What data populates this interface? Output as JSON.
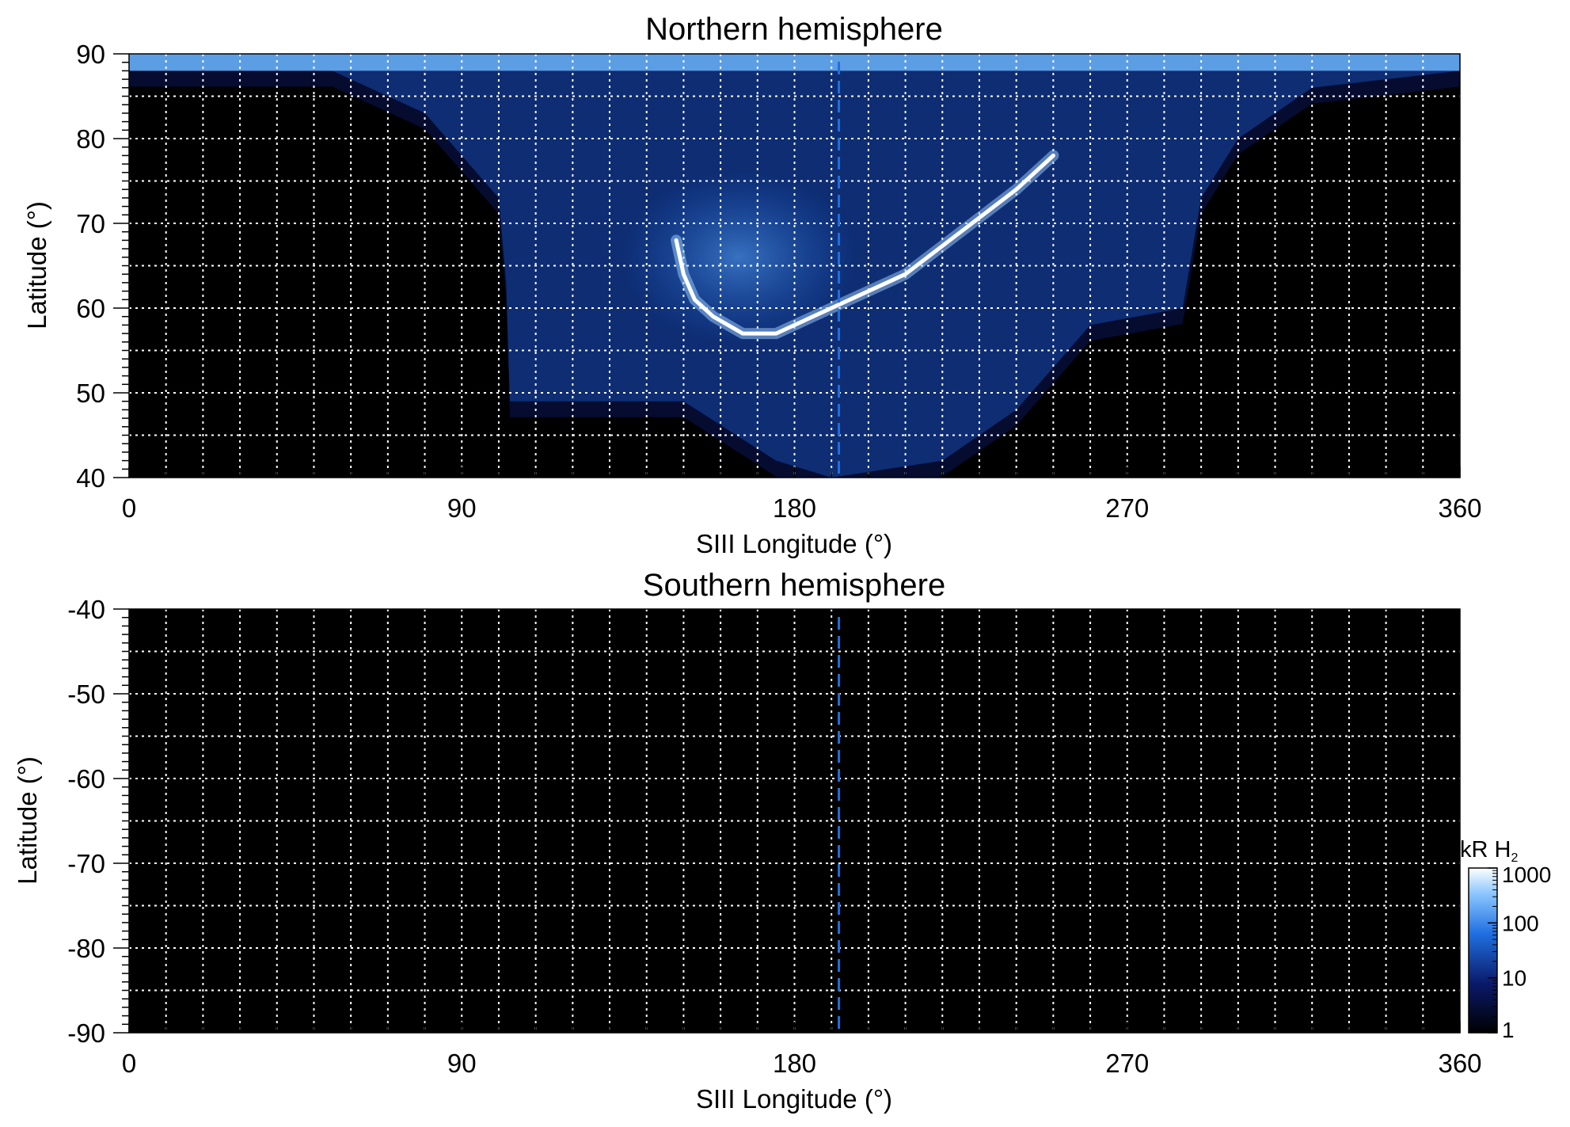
{
  "colors": {
    "background": "#000000",
    "auroral_low": "#0a1a6a",
    "auroral_mid": "#1f6fe0",
    "auroral_high": "#ffffff",
    "grid": "#ffffff",
    "reference_line": "#1f6fe0"
  },
  "chart_data": [
    {
      "type": "heatmap",
      "title": "Northern hemisphere",
      "xlabel": "SIII Longitude (°)",
      "ylabel": "Latitude (°)",
      "xlim": [
        0,
        360
      ],
      "ylim": [
        40,
        90
      ],
      "xticks": [
        0,
        90,
        180,
        270,
        360
      ],
      "yticks": [
        40,
        50,
        60,
        70,
        80,
        90
      ],
      "grid": true,
      "reference_line_longitude": 192,
      "features": [
        {
          "name": "main auroral oval",
          "points": [
            [
              148,
              68
            ],
            [
              150,
              64
            ],
            [
              153,
              61
            ],
            [
              158,
              59
            ],
            [
              166,
              57
            ],
            [
              175,
              57
            ],
            [
              185,
              59
            ],
            [
              195,
              61
            ],
            [
              210,
              64
            ],
            [
              225,
              69
            ],
            [
              240,
              74
            ],
            [
              250,
              78
            ]
          ]
        }
      ],
      "mapped_region": {
        "lower_boundary": [
          [
            0,
            88
          ],
          [
            55,
            88
          ],
          [
            80,
            83
          ],
          [
            100,
            73
          ],
          [
            102,
            63
          ],
          [
            103,
            49
          ],
          [
            150,
            49
          ],
          [
            175,
            42
          ],
          [
            190,
            40
          ],
          [
            220,
            42
          ],
          [
            240,
            48
          ],
          [
            260,
            58
          ],
          [
            285,
            60
          ],
          [
            290,
            73
          ],
          [
            300,
            80
          ],
          [
            320,
            86
          ],
          [
            360,
            88
          ]
        ]
      }
    },
    {
      "type": "heatmap",
      "title": "Southern hemisphere",
      "xlabel": "SIII Longitude (°)",
      "ylabel": "Latitude (°)",
      "xlim": [
        0,
        360
      ],
      "ylim": [
        -90,
        -40
      ],
      "xticks": [
        0,
        90,
        180,
        270,
        360
      ],
      "yticks": [
        -90,
        -80,
        -70,
        -60,
        -50,
        -40
      ],
      "grid": true,
      "reference_line_longitude": 192,
      "features": [],
      "mapped_region": null
    }
  ],
  "colorbar": {
    "label": "kR H",
    "label_subscript": "2",
    "scale": "log",
    "range": [
      1,
      1000
    ],
    "ticks": [
      {
        "value": 1000,
        "label": "1000"
      },
      {
        "value": 100,
        "label": "100"
      },
      {
        "value": 10,
        "label": "10"
      },
      {
        "value": 1,
        "label": "1"
      }
    ],
    "colors": [
      "#000000",
      "#0a1a6a",
      "#1f6fe0",
      "#8ec8ff",
      "#ffffff"
    ]
  }
}
